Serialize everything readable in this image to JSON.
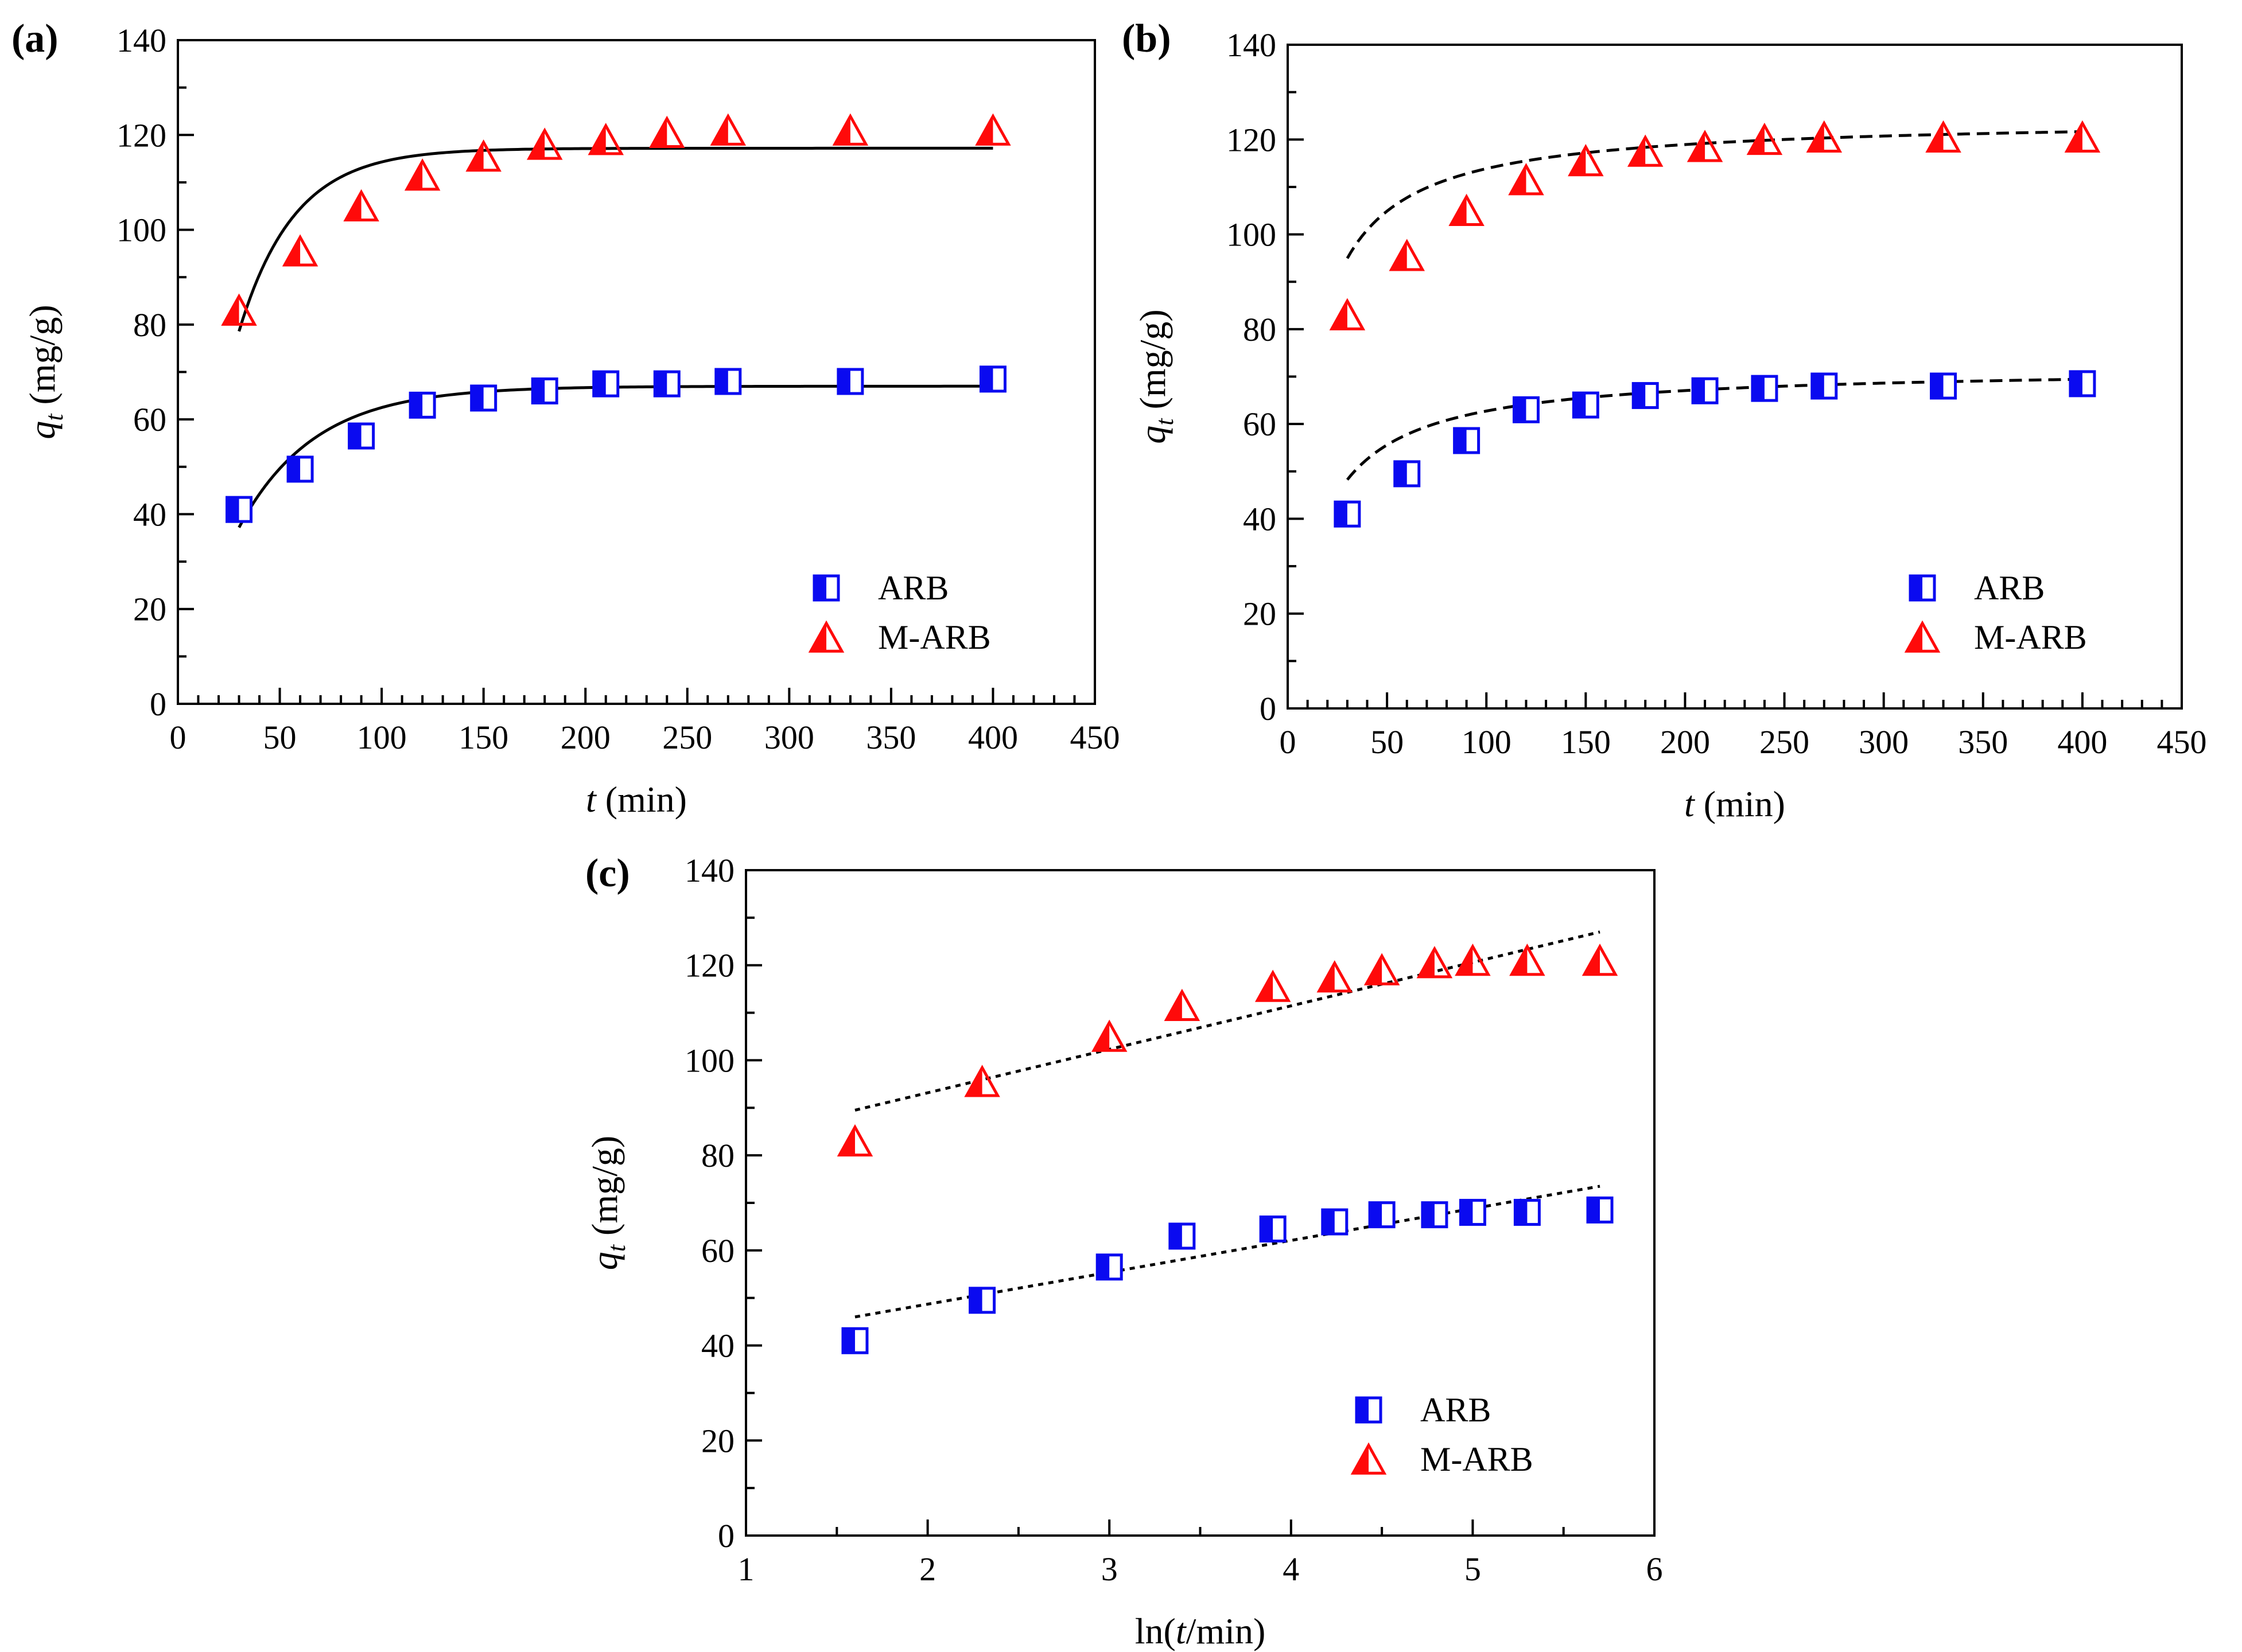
{
  "colors": {
    "arb": "#0a0af0",
    "marb": "#ff0a0a",
    "axis": "#000000",
    "fit": "#000000"
  },
  "chart_data": [
    {
      "panel_label": "(a)",
      "type": "scatter",
      "xlim": [
        0,
        450
      ],
      "ylim": [
        0,
        140
      ],
      "xticks": [
        "0",
        "50",
        "100",
        "150",
        "200",
        "250",
        "300",
        "350",
        "400",
        "450"
      ],
      "yticks": [
        "0",
        "20",
        "40",
        "60",
        "80",
        "100",
        "120",
        "140"
      ],
      "xlabel": {
        "italic": "t",
        "rest": " (min)"
      },
      "ylabel": {
        "italic": "q",
        "sub": "t",
        "rest": " (mg/g)"
      },
      "legend": [
        "ARB",
        "M-ARB"
      ],
      "series": [
        {
          "name": "ARB",
          "marker": "square",
          "x": [
            30,
            60,
            90,
            120,
            150,
            180,
            210,
            240,
            270,
            330,
            400
          ],
          "y": [
            41,
            49.5,
            56.5,
            63,
            64.5,
            66,
            67.5,
            67.5,
            68,
            68,
            68.5
          ]
        },
        {
          "name": "M-ARB",
          "marker": "triangle",
          "x": [
            30,
            60,
            90,
            120,
            150,
            180,
            210,
            240,
            270,
            330,
            400
          ],
          "y": [
            83,
            95.5,
            105,
            111.5,
            115.5,
            118,
            119,
            120.5,
            121,
            121,
            121
          ]
        }
      ],
      "fits": [
        {
          "for": "ARB",
          "style": "solid",
          "model": "pfo",
          "qe": 67,
          "k": 0.027,
          "x": [
            30,
            400
          ]
        },
        {
          "for": "M-ARB",
          "style": "solid",
          "model": "pfo",
          "qe": 117.2,
          "k": 0.037,
          "x": [
            30,
            400
          ]
        }
      ]
    },
    {
      "panel_label": "(b)",
      "type": "scatter",
      "xlim": [
        0,
        450
      ],
      "ylim": [
        0,
        140
      ],
      "xticks": [
        "0",
        "50",
        "100",
        "150",
        "200",
        "250",
        "300",
        "350",
        "400",
        "450"
      ],
      "yticks": [
        "0",
        "20",
        "40",
        "60",
        "80",
        "100",
        "120",
        "140"
      ],
      "xlabel": {
        "italic": "t",
        "rest": " (min)"
      },
      "ylabel": {
        "italic": "q",
        "sub": "t",
        "rest": " (mg/g)"
      },
      "legend": [
        "ARB",
        "M-ARB"
      ],
      "series": [
        {
          "name": "ARB",
          "marker": "square",
          "x": [
            30,
            60,
            90,
            120,
            150,
            180,
            210,
            240,
            270,
            330,
            400
          ],
          "y": [
            41,
            49.5,
            56.5,
            63,
            64,
            66,
            67,
            67.5,
            68,
            68,
            68.5
          ]
        },
        {
          "name": "M-ARB",
          "marker": "triangle",
          "x": [
            30,
            60,
            90,
            120,
            150,
            180,
            210,
            240,
            270,
            330,
            400
          ],
          "y": [
            83,
            95.5,
            105,
            111.5,
            115.5,
            117.5,
            118.5,
            120,
            120.5,
            120.5,
            120.5
          ]
        }
      ],
      "fits": [
        {
          "for": "ARB",
          "style": "dashed",
          "model": "pso",
          "qe": 72,
          "k": 0.00094,
          "x": [
            30,
            400
          ]
        },
        {
          "for": "M-ARB",
          "style": "dashed",
          "model": "pso",
          "qe": 124.5,
          "k": 0.00086,
          "x": [
            30,
            400
          ]
        }
      ]
    },
    {
      "panel_label": "(c)",
      "type": "scatter",
      "xlim": [
        1,
        6
      ],
      "ylim": [
        0,
        140
      ],
      "xticks": [
        "1",
        "2",
        "3",
        "4",
        "5",
        "6"
      ],
      "yticks": [
        "0",
        "20",
        "40",
        "60",
        "80",
        "100",
        "120",
        "140"
      ],
      "xlabel": {
        "pre": "ln(",
        "italic": "t",
        "rest": "/min)"
      },
      "ylabel": {
        "italic": "q",
        "sub": "t",
        "rest": " (mg/g)"
      },
      "legend": [
        "ARB",
        "M-ARB"
      ],
      "series": [
        {
          "name": "ARB",
          "marker": "square",
          "x": [
            1.6,
            2.3,
            3.0,
            3.4,
            3.9,
            4.24,
            4.5,
            4.79,
            5.0,
            5.3,
            5.7
          ],
          "y": [
            41,
            49.5,
            56.5,
            63,
            64.5,
            66,
            67.5,
            67.5,
            68,
            68,
            68.5
          ]
        },
        {
          "name": "M-ARB",
          "marker": "triangle",
          "x": [
            1.6,
            2.3,
            3.0,
            3.4,
            3.9,
            4.24,
            4.5,
            4.79,
            5.0,
            5.3,
            5.7
          ],
          "y": [
            83,
            95.5,
            105,
            111.5,
            115.5,
            117.5,
            119,
            120.5,
            121,
            121,
            121
          ]
        }
      ],
      "fits": [
        {
          "for": "ARB",
          "style": "dotted",
          "model": "linear",
          "x": [
            1.6,
            5.7
          ],
          "y": [
            46,
            73.5
          ]
        },
        {
          "for": "M-ARB",
          "style": "dotted",
          "model": "linear",
          "x": [
            1.6,
            5.7
          ],
          "y": [
            89.5,
            127
          ]
        }
      ]
    }
  ]
}
